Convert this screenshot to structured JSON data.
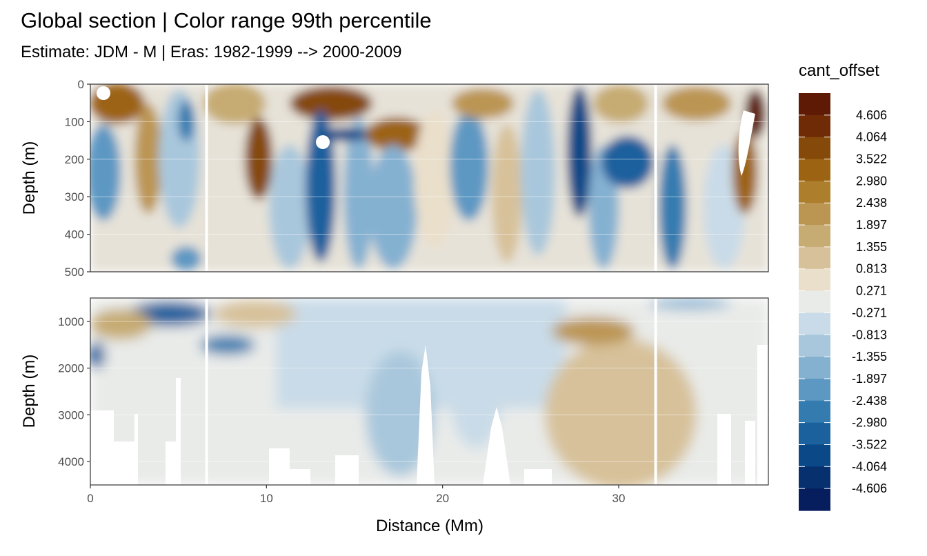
{
  "title": "Global section | Color range 99th percentile",
  "subtitle": "Estimate: JDM - M | Eras: 1982-1999 --> 2000-2009",
  "chart_data": {
    "type": "heatmap",
    "x_label": "Distance (Mm)",
    "x_range": [
      0,
      38.5
    ],
    "x_ticks": [
      0,
      10,
      20,
      30
    ],
    "white_gap_x": [
      6.6,
      32.1
    ],
    "panels": [
      {
        "name": "upper",
        "y_label": "Depth (m)",
        "y_range": [
          0,
          500
        ],
        "y_reversed": true,
        "y_ticks": [
          0,
          100,
          200,
          300,
          400,
          500
        ]
      },
      {
        "name": "lower",
        "y_label": "Depth (m)",
        "y_range": [
          500,
          4500
        ],
        "y_reversed": true,
        "y_ticks": [
          1000,
          2000,
          3000,
          4000
        ]
      }
    ],
    "legend": {
      "title": "cant_offset",
      "position": "right",
      "labels": [
        "4.606",
        "4.064",
        "3.522",
        "2.980",
        "2.438",
        "1.897",
        "1.355",
        "0.813",
        "0.271",
        "-0.271",
        "-0.813",
        "-1.355",
        "-1.897",
        "-2.438",
        "-2.980",
        "-3.522",
        "-4.064",
        "-4.606"
      ],
      "colors": [
        "#5e1a04",
        "#6f2b06",
        "#854a0a",
        "#9c6412",
        "#ad7e2c",
        "#bb9552",
        "#c6ab72",
        "#d7c19a",
        "#eadfcb",
        "#e9ebe9",
        "#c9dbe8",
        "#a9c7dc",
        "#85b1d1",
        "#5d98c3",
        "#347cb0",
        "#1a619e",
        "#0a4887",
        "#07306f",
        "#061d5e"
      ]
    }
  }
}
